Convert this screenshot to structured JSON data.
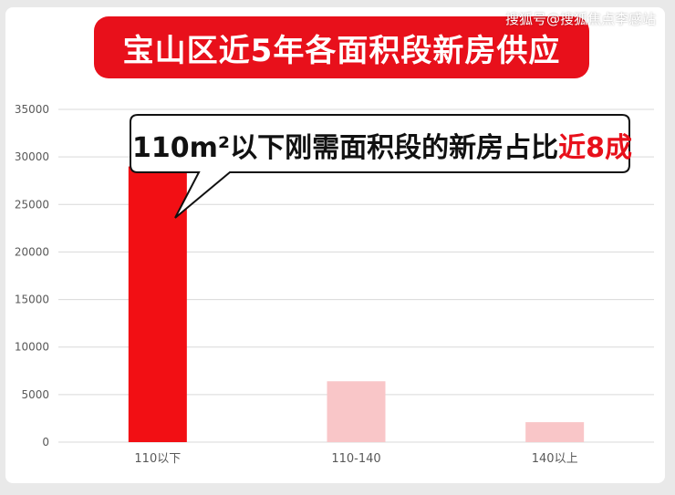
{
  "watermark": "搜狐号@搜狐焦点李感站",
  "chart_data": {
    "type": "bar",
    "title": "宝山区近5年各面积段新房供应",
    "categories": [
      "110以下",
      "110-140",
      "140以上"
    ],
    "values": [
      29000,
      6400,
      2100
    ],
    "ylim": [
      0,
      35000
    ],
    "yticks": [
      0,
      5000,
      10000,
      15000,
      20000,
      25000,
      30000,
      35000
    ],
    "grid": true,
    "bar_colors": [
      "#f20f14",
      "#f9c6c8",
      "#f9c6c8"
    ],
    "annotation": {
      "text_main": "110m²以下刚需面积段的新房占比",
      "text_highlight": "近8成",
      "target_category": "110以下"
    }
  }
}
